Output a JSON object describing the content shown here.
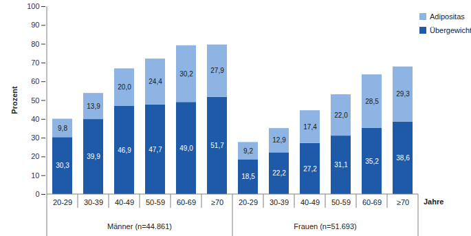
{
  "chart_data": {
    "type": "bar",
    "stacked": true,
    "data_labels": true,
    "legend": "right",
    "grid": false,
    "y_label": "Prozent",
    "x_label": "Jahre",
    "categories": [
      "20-29",
      "30-39",
      "40-49",
      "50-59",
      "60-69",
      "≥70",
      "20-29",
      "30-39",
      "40-49",
      "50-59",
      "60-69",
      "≥70"
    ],
    "group_labels": [
      "Männer (n=44.861)",
      "Männer (n=44.861)",
      "Männer (n=44.861)",
      "Männer (n=44.861)",
      "Männer (n=44.861)",
      "Männer (n=44.861)",
      "Frauen (n=51.693)",
      "Frauen (n=51.693)",
      "Frauen (n=51.693)",
      "Frauen (n=51.693)",
      "Frauen (n=51.693)",
      "Frauen (n=51.693)"
    ],
    "series": [
      {
        "name": "Übergewicht",
        "color": "#1f5aa8",
        "values": [
          30.3,
          39.9,
          46.9,
          47.7,
          49.0,
          51.7,
          18.5,
          22.2,
          27.2,
          31.1,
          35.2,
          38.6
        ],
        "value_labels": [
          "30,3",
          "39,9",
          "46,9",
          "47,7",
          "49,0",
          "51,7",
          "18,5",
          "22,2",
          "27,2",
          "31,1",
          "35,2",
          "38,6"
        ]
      },
      {
        "name": "Adipositas",
        "color": "#8db4e2",
        "values": [
          9.8,
          13.9,
          20.0,
          24.4,
          30.2,
          27.9,
          9.2,
          12.9,
          17.4,
          22.0,
          28.5,
          29.3
        ],
        "value_labels": [
          "9,8",
          "13,9",
          "20,0",
          "24,4",
          "30,2",
          "27,9",
          "9,2",
          "12,9",
          "17,4",
          "22,0",
          "28,5",
          "29,3"
        ]
      }
    ],
    "ylim": [
      0,
      100
    ],
    "yticks": [
      0,
      10,
      20,
      30,
      40,
      50,
      60,
      70,
      80,
      90,
      100
    ]
  }
}
